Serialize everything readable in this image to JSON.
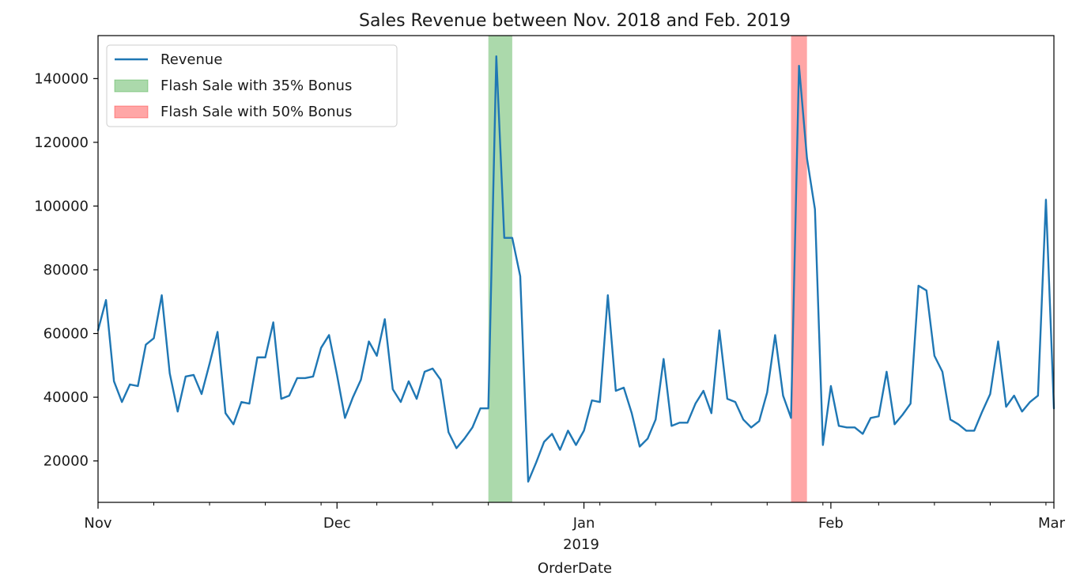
{
  "chart_data": {
    "type": "line",
    "title": "Sales Revenue between Nov. 2018 and Feb. 2019",
    "xlabel": "OrderDate",
    "ylabel": "",
    "xlim": [
      "2018-11-01",
      "2019-03-01"
    ],
    "ylim": [
      7000,
      153500
    ],
    "grid": false,
    "legend_position": "upper-left",
    "x_ticks": [
      {
        "date": "2018-11-01",
        "label": "Nov"
      },
      {
        "date": "2018-12-01",
        "label": "Dec"
      },
      {
        "date": "2019-01-01",
        "label": "Jan"
      },
      {
        "date": "2019-02-01",
        "label": "Feb"
      },
      {
        "date": "2019-03-01",
        "label": "Mar"
      }
    ],
    "year_label": "2019",
    "y_ticks": [
      {
        "value": 20000,
        "label": "20000"
      },
      {
        "value": 40000,
        "label": "40000"
      },
      {
        "value": 60000,
        "label": "60000"
      },
      {
        "value": 80000,
        "label": "80000"
      },
      {
        "value": 100000,
        "label": "100000"
      },
      {
        "value": 120000,
        "label": "120000"
      },
      {
        "value": 140000,
        "label": "140000"
      }
    ],
    "series": [
      {
        "name": "Revenue",
        "color": "#1f77b4",
        "x": [
          "2018-11-01",
          "2018-11-02",
          "2018-11-03",
          "2018-11-04",
          "2018-11-05",
          "2018-11-06",
          "2018-11-07",
          "2018-11-08",
          "2018-11-09",
          "2018-11-10",
          "2018-11-11",
          "2018-11-12",
          "2018-11-13",
          "2018-11-14",
          "2018-11-15",
          "2018-11-16",
          "2018-11-17",
          "2018-11-18",
          "2018-11-19",
          "2018-11-20",
          "2018-11-21",
          "2018-11-22",
          "2018-11-23",
          "2018-11-24",
          "2018-11-25",
          "2018-11-26",
          "2018-11-27",
          "2018-11-28",
          "2018-11-29",
          "2018-11-30",
          "2018-12-01",
          "2018-12-02",
          "2018-12-03",
          "2018-12-04",
          "2018-12-05",
          "2018-12-06",
          "2018-12-07",
          "2018-12-08",
          "2018-12-09",
          "2018-12-10",
          "2018-12-11",
          "2018-12-12",
          "2018-12-13",
          "2018-12-14",
          "2018-12-15",
          "2018-12-16",
          "2018-12-17",
          "2018-12-18",
          "2018-12-19",
          "2018-12-20",
          "2018-12-21",
          "2018-12-22",
          "2018-12-23",
          "2018-12-24",
          "2018-12-25",
          "2018-12-26",
          "2018-12-27",
          "2018-12-28",
          "2018-12-29",
          "2018-12-30",
          "2018-12-31",
          "2019-01-01",
          "2019-01-02",
          "2019-01-03",
          "2019-01-04",
          "2019-01-05",
          "2019-01-06",
          "2019-01-07",
          "2019-01-08",
          "2019-01-09",
          "2019-01-10",
          "2019-01-11",
          "2019-01-12",
          "2019-01-13",
          "2019-01-14",
          "2019-01-15",
          "2019-01-16",
          "2019-01-17",
          "2019-01-18",
          "2019-01-19",
          "2019-01-20",
          "2019-01-21",
          "2019-01-22",
          "2019-01-23",
          "2019-01-24",
          "2019-01-25",
          "2019-01-26",
          "2019-01-27",
          "2019-01-28",
          "2019-01-29",
          "2019-01-30",
          "2019-01-31",
          "2019-02-01",
          "2019-02-02",
          "2019-02-03",
          "2019-02-04",
          "2019-02-05",
          "2019-02-06",
          "2019-02-07",
          "2019-02-08",
          "2019-02-09",
          "2019-02-10",
          "2019-02-11",
          "2019-02-12",
          "2019-02-13",
          "2019-02-14",
          "2019-02-15",
          "2019-02-16",
          "2019-02-17",
          "2019-02-18",
          "2019-02-19",
          "2019-02-20",
          "2019-02-21",
          "2019-02-22",
          "2019-02-23",
          "2019-02-24",
          "2019-02-25",
          "2019-02-26",
          "2019-02-27",
          "2019-02-28",
          "2019-03-01"
        ],
        "values": [
          61000,
          70500,
          45000,
          38500,
          44000,
          43500,
          56500,
          58500,
          72000,
          47500,
          35500,
          46500,
          47000,
          41000,
          50500,
          60500,
          35000,
          31500,
          38500,
          38000,
          52500,
          52500,
          63500,
          39500,
          40500,
          46000,
          46000,
          46500,
          55500,
          59500,
          47000,
          33500,
          40000,
          45500,
          57500,
          53000,
          64500,
          42500,
          38500,
          45000,
          39500,
          48000,
          49000,
          45500,
          29000,
          24000,
          27000,
          30500,
          36500,
          36500,
          147000,
          90000,
          90000,
          78000,
          13500,
          19500,
          26000,
          28500,
          23500,
          29500,
          25000,
          29500,
          39000,
          38500,
          72000,
          42000,
          43000,
          35000,
          24500,
          27000,
          33000,
          52000,
          31000,
          32000,
          32000,
          38000,
          42000,
          35000,
          61000,
          39500,
          38500,
          33000,
          30500,
          32500,
          41500,
          59500,
          40500,
          33500,
          144000,
          115000,
          99000,
          25000,
          43500,
          31000,
          30500,
          30500,
          28500,
          33500,
          34000,
          48000,
          31500,
          34500,
          38000,
          75000,
          73500,
          53000,
          48000,
          33000,
          31500,
          29500,
          29500,
          35500,
          41000,
          57500,
          37000,
          40500,
          35500,
          38500,
          40500,
          102000,
          36500
        ]
      }
    ],
    "highlight_spans": [
      {
        "name": "Flash Sale with 35% Bonus",
        "start": "2018-12-20",
        "end": "2018-12-23",
        "color": "#2ca02c",
        "alpha": 0.4
      },
      {
        "name": "Flash Sale with 50% Bonus",
        "start": "2019-01-27",
        "end": "2019-01-29",
        "color": "#ff0000",
        "alpha": 0.35
      }
    ],
    "legend": [
      {
        "label": "Revenue",
        "kind": "line",
        "color": "#1f77b4"
      },
      {
        "label": "Flash Sale with 35% Bonus",
        "kind": "patch",
        "color": "#2ca02c",
        "alpha": 0.4
      },
      {
        "label": "Flash Sale with 50% Bonus",
        "kind": "patch",
        "color": "#ff0000",
        "alpha": 0.35
      }
    ]
  }
}
